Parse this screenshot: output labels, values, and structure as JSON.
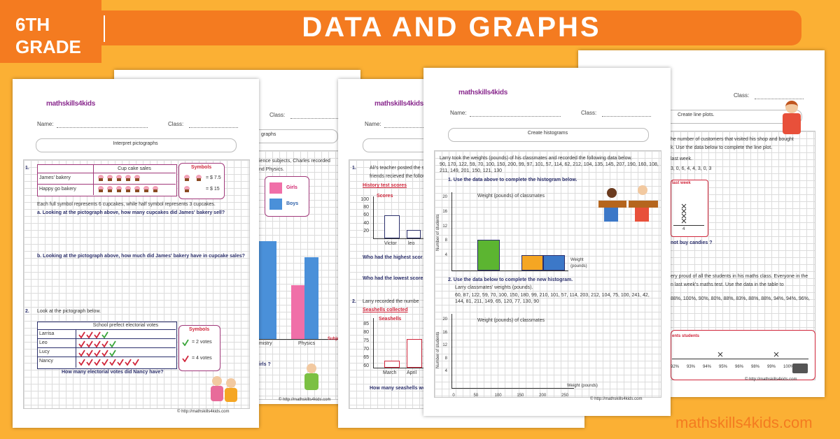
{
  "header": {
    "grade_number": "6TH",
    "grade_word": "GRADE",
    "title": "DATA AND GRAPHS"
  },
  "footer": {
    "site": "mathskills4kids.com"
  },
  "worksheets": [
    {
      "logo": "mathskills4kids",
      "name_label": "Name:",
      "class_label": "Class:",
      "topic": "Interpret pictographs",
      "q1": {
        "number": "1.",
        "table_title": "Cup cake sales",
        "rows": [
          "James' bakery",
          "Happy go bakery"
        ],
        "symbols_title": "Symbols",
        "symbol_values": [
          "= $ 7.5",
          "= $ 15"
        ],
        "note": "Each full symbol represents 6 cupcakes, while half symbol represents 3 cupcakes.",
        "question_a": "a. Looking at the pictograph above, how many cupcakes  did James' bakery  sell?",
        "question_b": "b. Looking at the pictograph above, how much did James' bakery have in cupcake sales?"
      },
      "q2": {
        "number": "2.",
        "intro": "Look at the pictograph below.",
        "table_title": "School prefect electorial votes",
        "rows": [
          "Larrisa",
          "Leo",
          "Lucy",
          "Nancy"
        ],
        "symbols_title": "Symbols",
        "symbol_values": [
          "= 2 votes",
          "= 4 votes"
        ],
        "question": "How many electorial votes did Nancy have?"
      },
      "copyright": "© http://mathskills4kids.com"
    },
    {
      "class_label": "Class:",
      "topic": "graphs",
      "intro": [
        "ience subjects, Charles recorded",
        "nd Physics."
      ],
      "legend": [
        "Girls",
        "Boys"
      ],
      "categories": [
        "mistry",
        "Physics"
      ],
      "axis_label": "Subje",
      "question": "irls ?",
      "copyright": "© http://mathskills4kids.com"
    },
    {
      "logo": "mathskills4kids",
      "name_label": "Name:",
      "q1": {
        "number": "1.",
        "intro": [
          "Ali's teacher posted the sc",
          "friends recieved the follow"
        ],
        "chart_title": "History test scores",
        "axis_title": "Scores",
        "yticks": [
          100,
          80,
          60,
          40,
          20
        ],
        "categories": [
          "Victor",
          "leo"
        ],
        "questions": [
          "Who had the highest scor",
          "Who had the lowest score"
        ]
      },
      "q2": {
        "number": "2.",
        "intro": "Larry recorded the numbe",
        "chart_title": "Seashells collected",
        "axis_title": "Seashells",
        "yticks": [
          85,
          80,
          75,
          70,
          65,
          60
        ],
        "categories": [
          "March",
          "April"
        ],
        "question": "How many seashells we"
      },
      "copyright": "© http://mathskills4kids.com"
    },
    {
      "logo": "mathskills4kids",
      "name_label": "Name:",
      "class_label": "Class:",
      "topic": "Create histograms",
      "intro": "Larry took the weights (pounds) of his classmates and recorded the following data below.",
      "data": "90, 170, 122, 59, 70, 100, 150, 200, 99, 97, 101, 57, 114, 62, 212, 104, 135, 145, 207, 190, 160, 108, 211, 149, 201, 150, 121, 130",
      "q1": {
        "instruction": "1.   Use the data above to complete the histogram below.",
        "chart_title": "Weight (pounds) of classmates",
        "y_title": "Number of students",
        "yticks": [
          20,
          16,
          12,
          8,
          4
        ],
        "x_title": [
          "Weight",
          "(pounds)"
        ]
      },
      "q2": {
        "instruction": "2.   Use the data below to complete the new histogram.",
        "intro": "Larry classmates' weights (pounds).",
        "data": "60, 87, 122, 59, 70, 100, 150, 180, 99, 210, 101, 57, 114, 203, 212, 104, 75, 100, 241, 42, 144, 81, 211, 149, 65, 120, 77, 130, 90",
        "chart_title": "Weight (pounds) of classmates",
        "y_title": "Number of students",
        "yticks": [
          20,
          16,
          12,
          8,
          4
        ],
        "xticks": [
          0,
          50,
          100,
          150,
          200,
          250
        ],
        "x_title": "Weight (pounds)"
      },
      "copyright": "© http://mathskills4kids.com"
    },
    {
      "class_label": "Class:",
      "topic": "Create line plots.",
      "q1": {
        "intro": [
          "he number of customers that visited his shop and bought",
          "k. Use the data below to complete the line plot."
        ],
        "data_title": "last week.",
        "data": "3, 0, 6, 4, 4, 3, 0, 3",
        "plot_title": "last week",
        "plot_tick": 4,
        "question": "not buy candies ?"
      },
      "q2": {
        "intro": [
          "ery proud of all the students in his maths class. Everyone in the",
          "n last week's maths test. Use the data in the table to"
        ],
        "data": "88%, 100%, 90%, 80%, 88%, 83%, 88%, 88%, 94%, 94%, 96%,",
        "plot_title": "ents students",
        "xticks": [
          "92%",
          "93%",
          "94%",
          "95%",
          "96%",
          "98%",
          "99%",
          "100%"
        ]
      },
      "copyright": "© http://mathskills4kids.com"
    }
  ]
}
